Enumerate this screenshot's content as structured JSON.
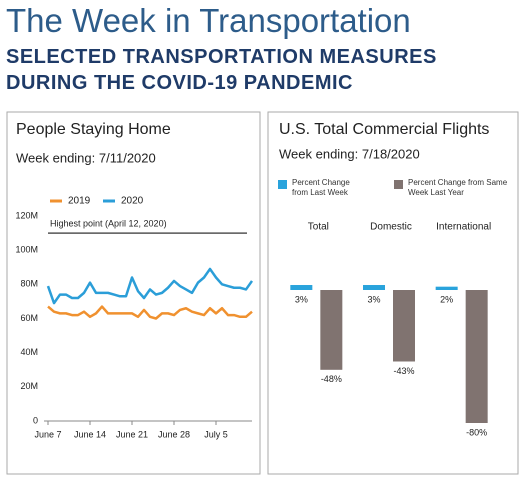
{
  "header": {
    "title": "The Week in Transportation",
    "subtitle": "SELECTED TRANSPORTATION MEASURES DURING THE COVID-19 PANDEMIC"
  },
  "chart_data": [
    {
      "type": "line",
      "title": "People Staying Home",
      "subtitle": "Week ending: 7/11/2020",
      "categories": [
        "June 7",
        null,
        null,
        null,
        null,
        null,
        null,
        "June 14",
        null,
        null,
        null,
        null,
        null,
        null,
        "June 21",
        null,
        null,
        null,
        null,
        null,
        null,
        "June 28",
        null,
        null,
        null,
        null,
        null,
        null,
        "July 5",
        null,
        null,
        null,
        null,
        null,
        null
      ],
      "series": [
        {
          "name": "2019",
          "color": "#f0912f",
          "values": [
            67,
            64,
            63,
            63,
            62,
            62,
            64,
            61,
            63,
            67,
            63,
            63,
            63,
            63,
            63,
            61,
            65,
            61,
            60,
            63,
            63,
            62,
            65,
            66,
            64,
            63,
            62,
            66,
            63,
            66,
            62,
            62,
            61,
            61,
            64
          ]
        },
        {
          "name": "2020",
          "color": "#2b9ed8",
          "values": [
            79,
            69,
            74,
            74,
            72,
            72,
            75,
            81,
            75,
            75,
            75,
            74,
            73,
            73,
            84,
            76,
            72,
            77,
            74,
            75,
            78,
            82,
            79,
            77,
            75,
            81,
            84,
            89,
            84,
            80,
            79,
            78,
            78,
            77,
            82
          ]
        }
      ],
      "ylim": [
        0,
        120
      ],
      "yticks": [
        0,
        {
          "value": 20,
          "label": "20M"
        },
        {
          "value": 40,
          "label": "40M"
        },
        {
          "value": 60,
          "label": "60M"
        },
        {
          "value": 80,
          "label": "80M"
        },
        {
          "value": 100,
          "label": "100M"
        },
        {
          "value": 120,
          "label": "120M"
        }
      ],
      "reference_line": {
        "value": 110,
        "label": "Highest point (April 12, 2020)"
      },
      "grid": false,
      "legend": "top"
    },
    {
      "type": "bar",
      "title": "U.S. Total Commercial Flights",
      "subtitle": "Week ending: 7/18/2020",
      "categories": [
        "Total",
        "Domestic",
        "International"
      ],
      "series": [
        {
          "name": "Percent Change from Last Week",
          "color": "#29a3dc",
          "values": [
            3,
            3,
            2
          ],
          "value_labels": [
            "3%",
            "3%",
            "2%"
          ]
        },
        {
          "name": "Percent Change from Same Week Last Year",
          "color": "#807370",
          "values": [
            -48,
            -43,
            -80
          ],
          "value_labels": [
            "-48%",
            "-43%",
            "-80%"
          ]
        }
      ],
      "legend": "top"
    }
  ]
}
